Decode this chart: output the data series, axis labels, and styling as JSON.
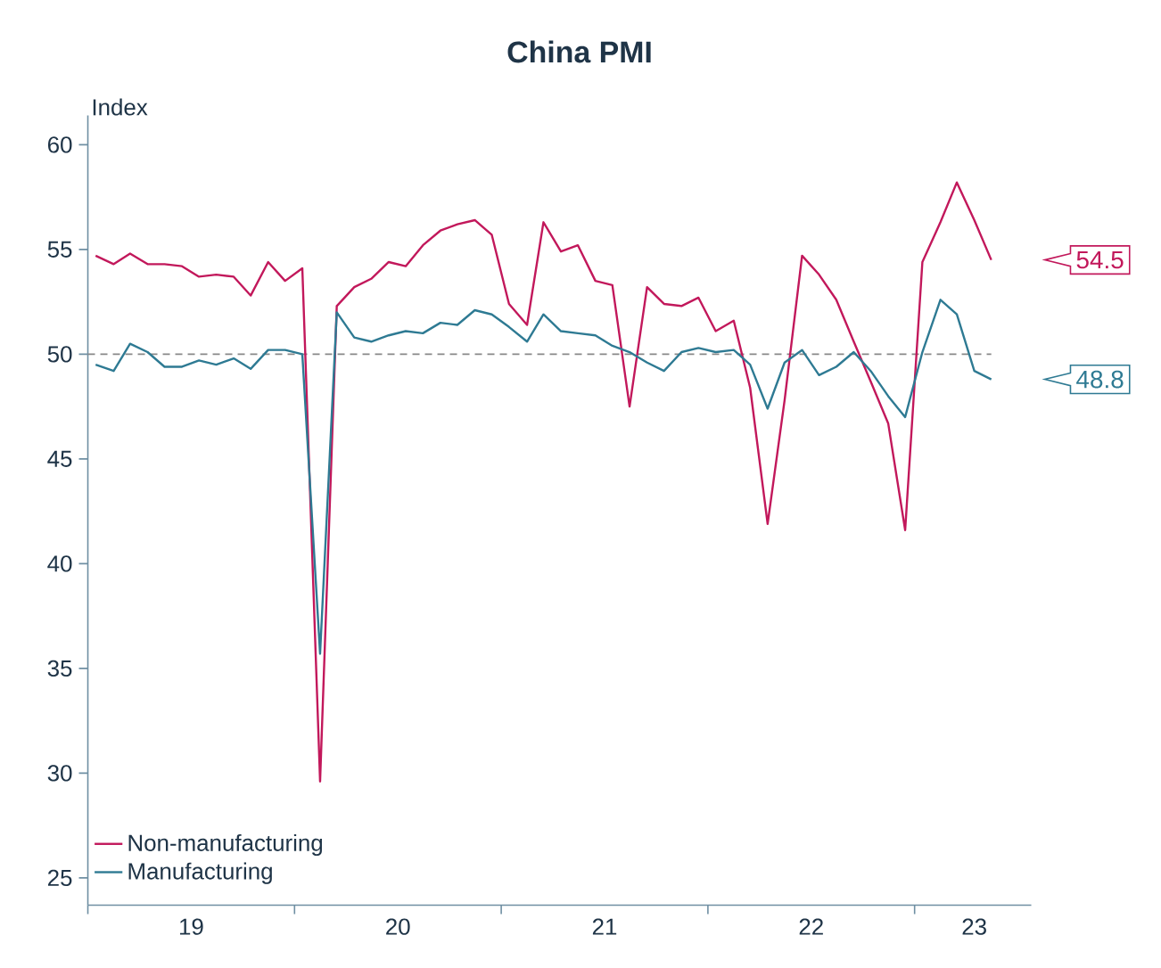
{
  "chart_data": {
    "type": "line",
    "title": "China PMI",
    "ylabel": "Index",
    "x": [
      "2019-01-15",
      "2019-02-15",
      "2019-03-15",
      "2019-04-15",
      "2019-05-15",
      "2019-06-15",
      "2019-07-15",
      "2019-08-15",
      "2019-09-15",
      "2019-10-15",
      "2019-11-15",
      "2019-12-15",
      "2020-01-15",
      "2020-02-15",
      "2020-03-15",
      "2020-04-15",
      "2020-05-15",
      "2020-06-15",
      "2020-07-15",
      "2020-08-15",
      "2020-09-15",
      "2020-10-15",
      "2020-11-15",
      "2020-12-15",
      "2021-01-15",
      "2021-02-15",
      "2021-03-15",
      "2021-04-15",
      "2021-05-15",
      "2021-06-15",
      "2021-07-15",
      "2021-08-15",
      "2021-09-15",
      "2021-10-15",
      "2021-11-15",
      "2021-12-15",
      "2022-01-15",
      "2022-02-15",
      "2022-03-15",
      "2022-04-15",
      "2022-05-15",
      "2022-06-15",
      "2022-07-15",
      "2022-08-15",
      "2022-09-15",
      "2022-10-15",
      "2022-11-15",
      "2022-12-15",
      "2023-01-15",
      "2023-02-15",
      "2023-03-15",
      "2023-04-15",
      "2023-05-15"
    ],
    "series": [
      {
        "name": "Non-manufacturing",
        "color": "#c2185b",
        "values": [
          54.7,
          54.3,
          54.8,
          54.3,
          54.3,
          54.2,
          53.7,
          53.8,
          53.7,
          52.8,
          54.4,
          53.5,
          54.1,
          29.6,
          52.3,
          53.2,
          53.6,
          54.4,
          54.2,
          55.2,
          55.9,
          56.2,
          56.4,
          55.7,
          52.4,
          51.4,
          56.3,
          54.9,
          55.2,
          53.5,
          53.3,
          47.5,
          53.2,
          52.4,
          52.3,
          52.7,
          51.1,
          51.6,
          48.4,
          41.9,
          47.8,
          54.7,
          53.8,
          52.6,
          50.6,
          48.7,
          46.7,
          41.6,
          54.4,
          56.3,
          58.2,
          56.4,
          54.5
        ]
      },
      {
        "name": "Manufacturing",
        "color": "#2e7a93",
        "values": [
          49.5,
          49.2,
          50.5,
          50.1,
          49.4,
          49.4,
          49.7,
          49.5,
          49.8,
          49.3,
          50.2,
          50.2,
          50.0,
          35.7,
          52.0,
          50.8,
          50.6,
          50.9,
          51.1,
          51.0,
          51.5,
          51.4,
          52.1,
          51.9,
          51.3,
          50.6,
          51.9,
          51.1,
          51.0,
          50.9,
          50.4,
          50.1,
          49.6,
          49.2,
          50.1,
          50.3,
          50.1,
          50.2,
          49.5,
          47.4,
          49.6,
          50.2,
          49.0,
          49.4,
          50.1,
          49.2,
          48.0,
          47.0,
          50.1,
          52.6,
          51.9,
          49.2,
          48.8
        ]
      }
    ],
    "xlim": [
      "2019-01-01",
      "2023-07-25"
    ],
    "xticks": [
      {
        "value": "2019-01-01",
        "label": null
      },
      {
        "value": "2020-01-01",
        "label": null
      },
      {
        "value": "2021-01-01",
        "label": null
      },
      {
        "value": "2022-01-01",
        "label": null
      },
      {
        "value": "2023-01-01",
        "label": null
      },
      {
        "value": "2019-07-01",
        "label": "19"
      },
      {
        "value": "2020-07-01",
        "label": "20"
      },
      {
        "value": "2021-07-01",
        "label": "21"
      },
      {
        "value": "2022-07-01",
        "label": "22"
      },
      {
        "value": "2023-04-15",
        "label": "23"
      }
    ],
    "ylim": [
      23.7,
      61.4
    ],
    "yticks": [
      25,
      30,
      35,
      40,
      45,
      50,
      55,
      60
    ],
    "ref_lines": [
      {
        "axis": "y",
        "value": 50,
        "color": "#888888",
        "line_style": "dashed"
      }
    ],
    "annotations": [
      "54.5",
      "48.8"
    ],
    "legend": "bottom left"
  }
}
